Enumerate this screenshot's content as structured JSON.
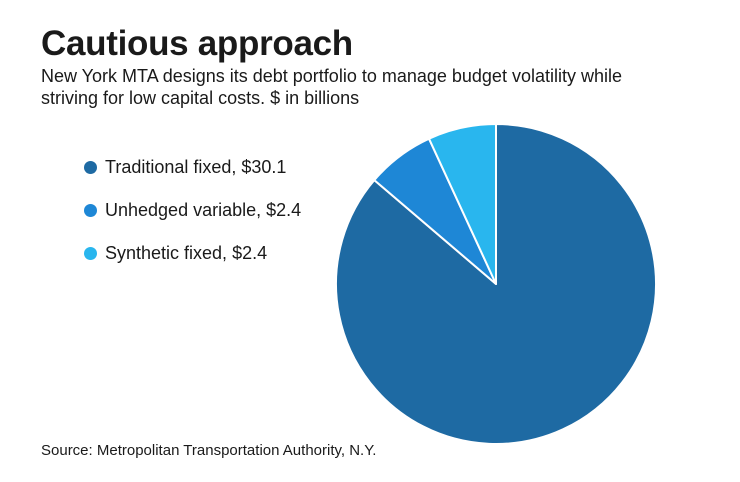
{
  "title": "Cautious approach",
  "subtitle": "New York MTA designs its debt portfolio to manage budget volatility while striving for low capital costs. $ in billions",
  "source": "Source: Metropolitan Transportation Authority, N.Y.",
  "chart_data": {
    "type": "pie",
    "title": "Cautious approach",
    "unit": "$ in billions",
    "legend_position": "left",
    "slices": [
      {
        "label": "Traditional fixed",
        "legend_label": "Traditional fixed, $30.1",
        "value": 30.1,
        "color": "#1e6aa3"
      },
      {
        "label": "Unhedged variable",
        "legend_label": "Unhedged variable, $2.4",
        "value": 2.4,
        "color": "#1e87d6"
      },
      {
        "label": "Synthetic fixed",
        "legend_label": "Synthetic fixed, $2.4",
        "value": 2.4,
        "color": "#29b6ee"
      }
    ]
  }
}
